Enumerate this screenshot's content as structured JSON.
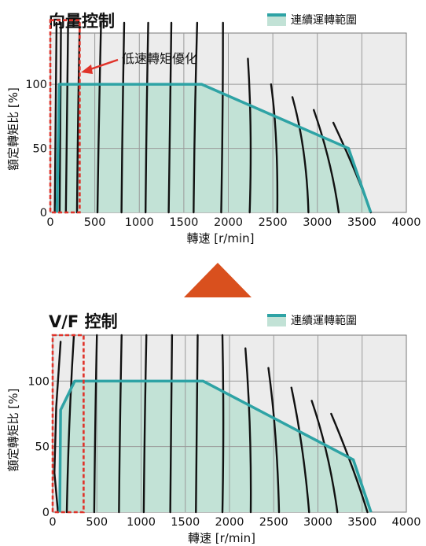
{
  "colors": {
    "plot_bg": "#ececec",
    "grid": "#9a9a9a",
    "region_fill": "#c2e2d6",
    "region_line": "#2ea3a5",
    "curve": "#111111",
    "highlight": "#e0332a",
    "arrow": "#d9501e"
  },
  "chart_data": [
    {
      "type": "area",
      "title": "向量控制",
      "legend": "連續運轉範圍",
      "xlabel": "轉速 [r/min]",
      "ylabel": "額定轉矩比 [%]",
      "xlim": [
        0,
        4000
      ],
      "ylim": [
        0,
        140
      ],
      "x_ticks": [
        0,
        500,
        1000,
        1500,
        2000,
        2500,
        3000,
        3500,
        4000
      ],
      "y_ticks": [
        0,
        50,
        100
      ],
      "grid": true,
      "legend_position": "top-right",
      "continuous_region": {
        "x": [
          0,
          75,
          100,
          1700,
          3350,
          3600,
          0
        ],
        "y": [
          0,
          0,
          100,
          100,
          50,
          0,
          0
        ]
      },
      "annotation": {
        "text": "低速轉矩優化",
        "box_x": [
          0,
          330
        ],
        "box_y": [
          0,
          150
        ]
      },
      "torque_curves": [
        {
          "x": [
            70,
            60,
            50
          ],
          "y": [
            148,
            75,
            0
          ]
        },
        {
          "x": [
            120,
            110,
            105
          ],
          "y": [
            148,
            75,
            0
          ]
        },
        {
          "x": [
            200,
            185,
            175
          ],
          "y": [
            148,
            75,
            0
          ]
        },
        {
          "x": [
            330,
            310,
            300
          ],
          "y": [
            148,
            75,
            0
          ]
        },
        {
          "x": [
            570,
            545,
            530
          ],
          "y": [
            148,
            75,
            0
          ]
        },
        {
          "x": [
            830,
            810,
            800
          ],
          "y": [
            148,
            75,
            0
          ]
        },
        {
          "x": [
            1100,
            1080,
            1070
          ],
          "y": [
            148,
            75,
            0
          ]
        },
        {
          "x": [
            1360,
            1345,
            1330
          ],
          "y": [
            148,
            75,
            0
          ]
        },
        {
          "x": [
            1650,
            1620,
            1610
          ],
          "y": [
            148,
            75,
            0
          ]
        },
        {
          "x": [
            1940,
            1940,
            1920
          ],
          "y": [
            148,
            75,
            0
          ]
        },
        {
          "x": [
            2220,
            2270,
            2240
          ],
          "y": [
            120,
            65,
            0
          ]
        },
        {
          "x": [
            2480,
            2560,
            2550
          ],
          "y": [
            100,
            60,
            0
          ]
        },
        {
          "x": [
            2720,
            2880,
            2900
          ],
          "y": [
            90,
            50,
            0
          ]
        },
        {
          "x": [
            2960,
            3160,
            3240
          ],
          "y": [
            80,
            40,
            0
          ]
        },
        {
          "x": [
            3180,
            3450,
            3600
          ],
          "y": [
            70,
            30,
            0
          ]
        }
      ]
    },
    {
      "type": "area",
      "title": "V/F 控制",
      "legend": "連續運轉範圍",
      "xlabel": "轉速 [r/min]",
      "ylabel": "額定轉矩比 [%]",
      "xlim": [
        0,
        4000
      ],
      "ylim": [
        0,
        135
      ],
      "x_ticks": [
        0,
        500,
        1000,
        1500,
        2000,
        2500,
        3000,
        3500,
        4000
      ],
      "y_ticks": [
        0,
        50,
        100
      ],
      "grid": true,
      "legend_position": "top-right",
      "continuous_region": {
        "x": [
          0,
          80,
          90,
          250,
          1700,
          3400,
          3600,
          0
        ],
        "y": [
          0,
          0,
          78,
          100,
          100,
          40,
          0,
          0
        ]
      },
      "annotation": {
        "box_x": [
          0,
          350
        ],
        "box_y": [
          0,
          135
        ]
      },
      "torque_curves": [
        {
          "x": [
            90,
            40,
            20,
            60
          ],
          "y": [
            130,
            80,
            30,
            0
          ]
        },
        {
          "x": [
            240,
            180,
            160
          ],
          "y": [
            135,
            70,
            0
          ]
        },
        {
          "x": [
            500,
            480,
            470
          ],
          "y": [
            135,
            70,
            0
          ]
        },
        {
          "x": [
            780,
            760,
            750
          ],
          "y": [
            135,
            70,
            0
          ]
        },
        {
          "x": [
            1060,
            1040,
            1030
          ],
          "y": [
            135,
            70,
            0
          ]
        },
        {
          "x": [
            1350,
            1340,
            1330
          ],
          "y": [
            135,
            70,
            0
          ]
        },
        {
          "x": [
            1640,
            1630,
            1620
          ],
          "y": [
            135,
            70,
            0
          ]
        },
        {
          "x": [
            1920,
            1940,
            1920
          ],
          "y": [
            135,
            70,
            0
          ]
        },
        {
          "x": [
            2180,
            2250,
            2240
          ],
          "y": [
            125,
            65,
            0
          ]
        },
        {
          "x": [
            2440,
            2540,
            2560
          ],
          "y": [
            110,
            60,
            0
          ]
        },
        {
          "x": [
            2700,
            2840,
            2900
          ],
          "y": [
            95,
            50,
            0
          ]
        },
        {
          "x": [
            2930,
            3130,
            3220
          ],
          "y": [
            85,
            45,
            0
          ]
        },
        {
          "x": [
            3150,
            3400,
            3560
          ],
          "y": [
            75,
            35,
            0
          ]
        }
      ]
    }
  ]
}
